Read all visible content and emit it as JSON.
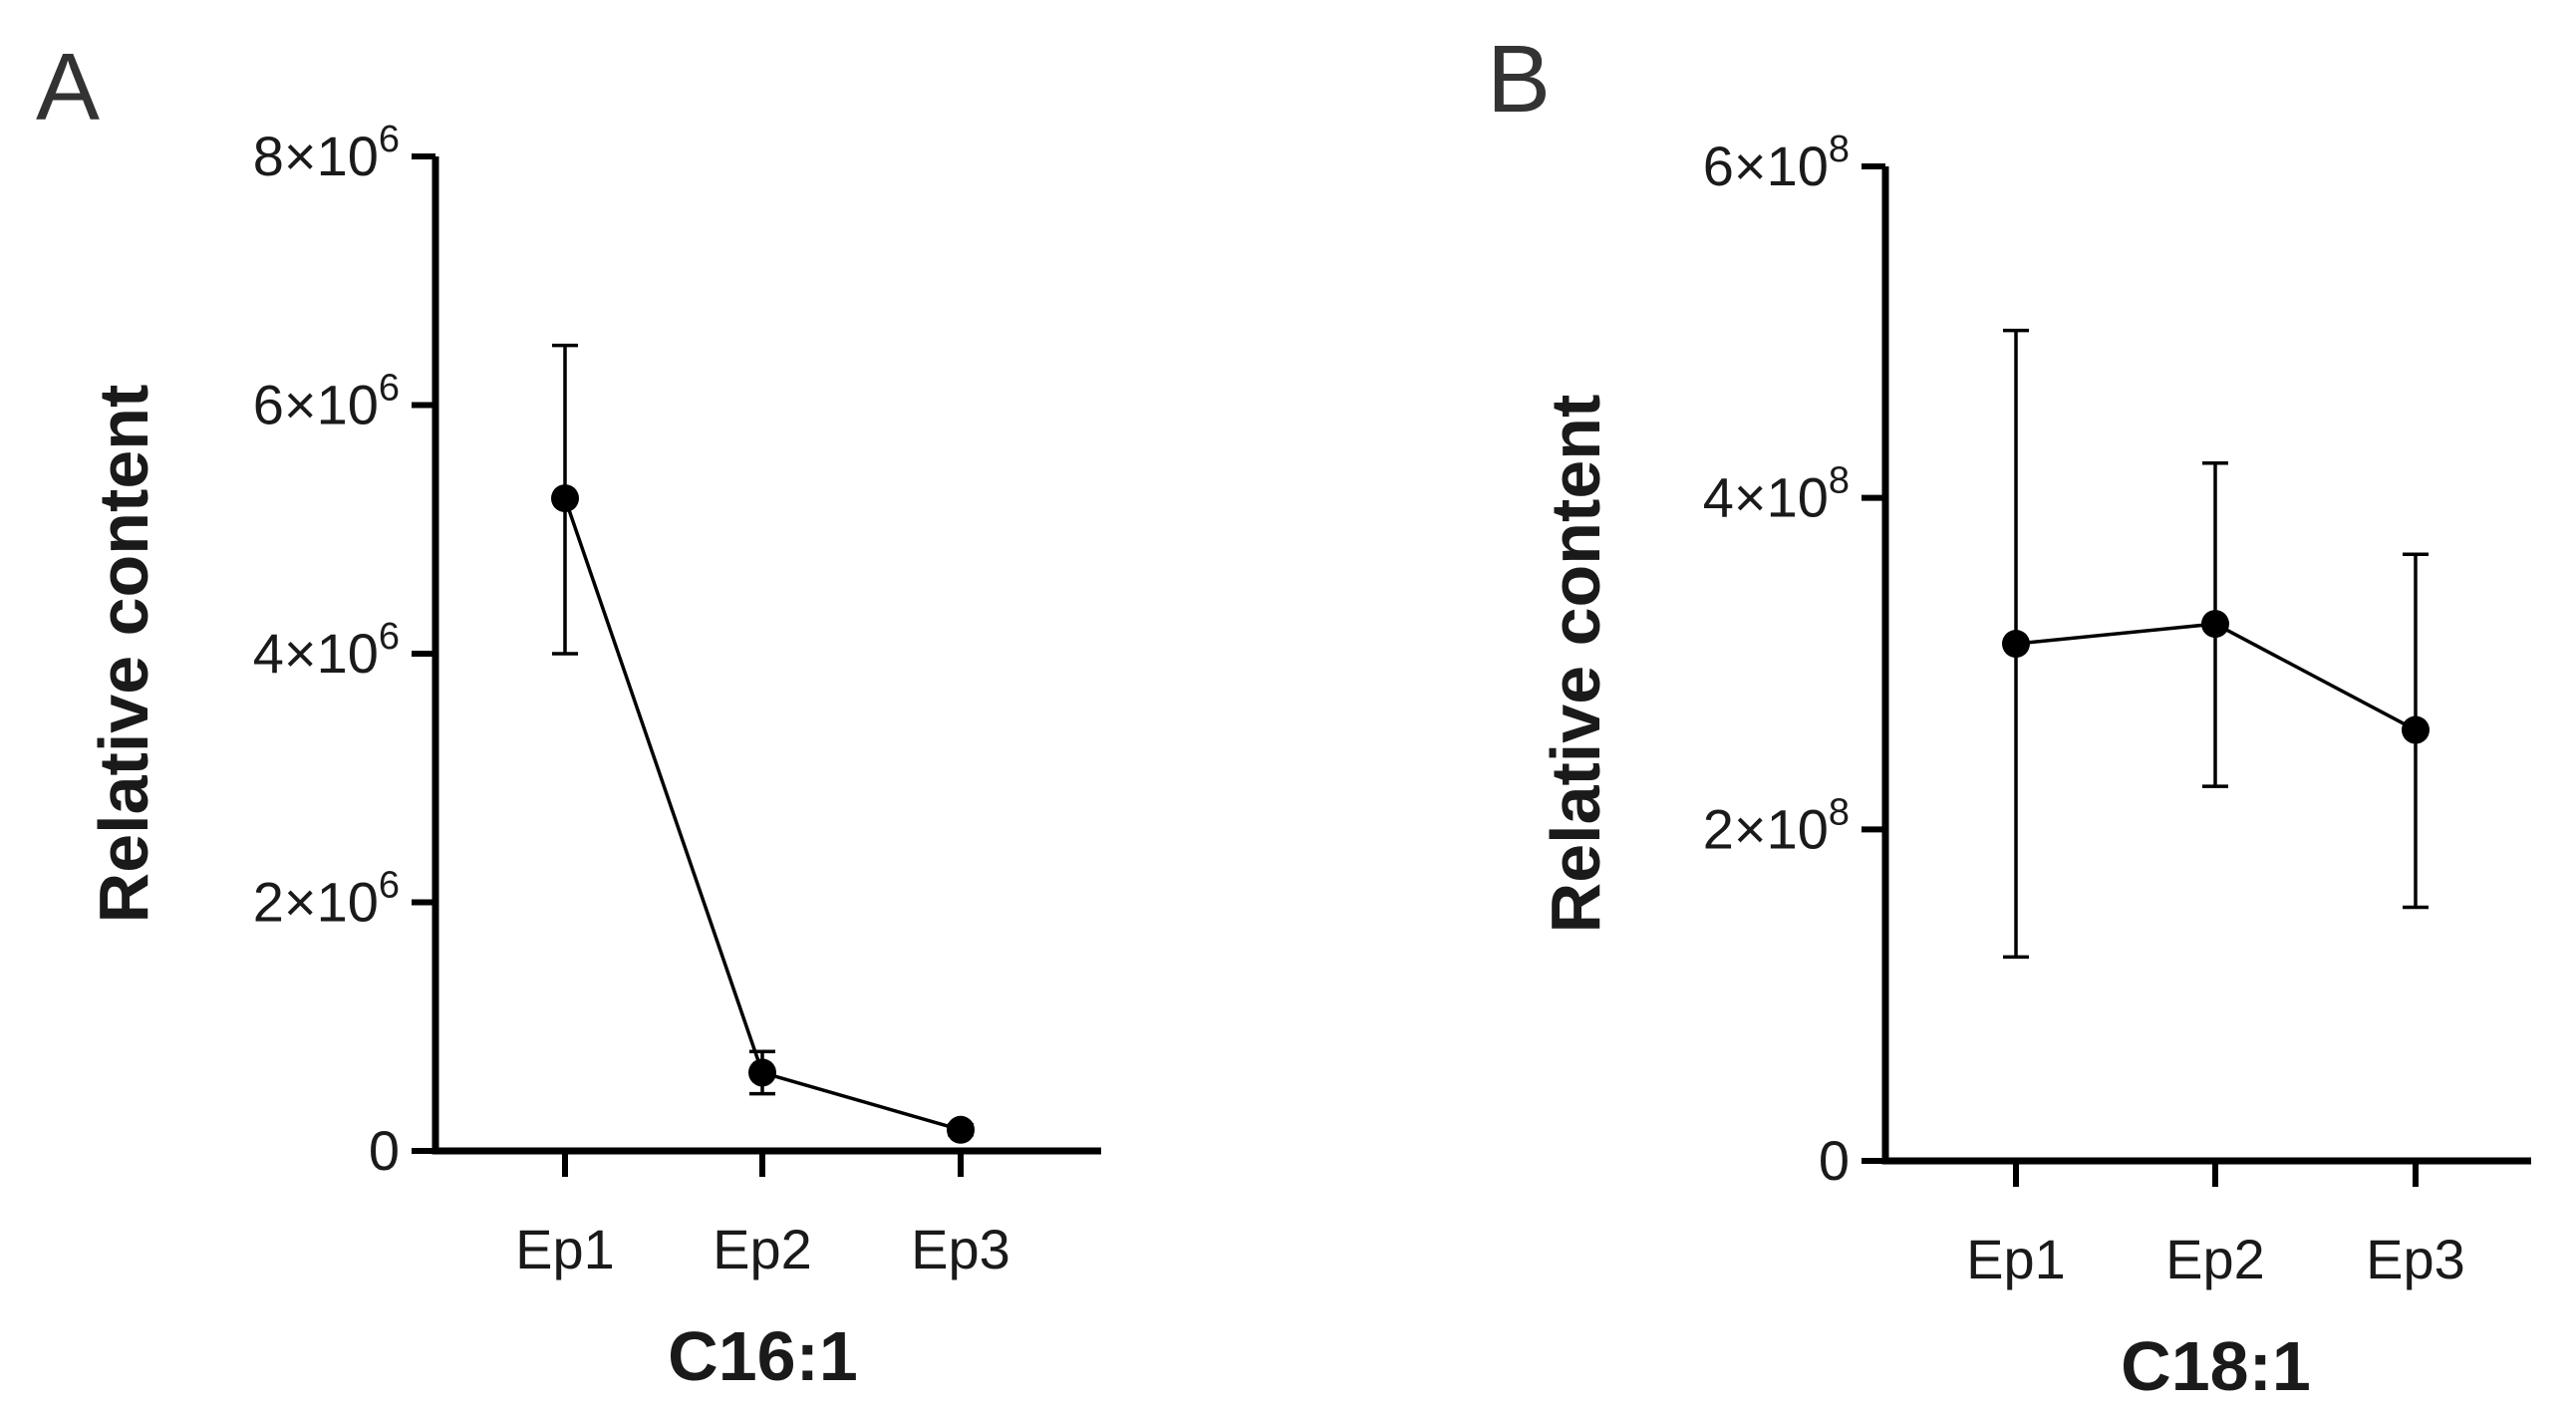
{
  "chart_data": [
    {
      "panel": "A",
      "type": "line",
      "xlabel": "C16:1",
      "ylabel": "Relative content",
      "categories": [
        "Ep1",
        "Ep2",
        "Ep3"
      ],
      "ylim": [
        0,
        8000000
      ],
      "yticks": [
        {
          "value": 0,
          "mantissa": "0",
          "exponent": ""
        },
        {
          "value": 2000000,
          "mantissa": "2×10",
          "exponent": "6"
        },
        {
          "value": 4000000,
          "mantissa": "4×10",
          "exponent": "6"
        },
        {
          "value": 6000000,
          "mantissa": "6×10",
          "exponent": "6"
        },
        {
          "value": 8000000,
          "mantissa": "8×10",
          "exponent": "6"
        }
      ],
      "series": [
        {
          "values": [
            5250000,
            630000,
            170000
          ],
          "error_low": [
            4000000,
            460000,
            130000
          ],
          "error_high": [
            6480000,
            800000,
            210000
          ]
        }
      ]
    },
    {
      "panel": "B",
      "type": "line",
      "xlabel": "C18:1",
      "ylabel": "Relative content",
      "categories": [
        "Ep1",
        "Ep2",
        "Ep3"
      ],
      "ylim": [
        0,
        600000000
      ],
      "yticks": [
        {
          "value": 0,
          "mantissa": "0",
          "exponent": ""
        },
        {
          "value": 200000000,
          "mantissa": "2×10",
          "exponent": "8"
        },
        {
          "value": 400000000,
          "mantissa": "4×10",
          "exponent": "8"
        },
        {
          "value": 600000000,
          "mantissa": "6×10",
          "exponent": "8"
        }
      ],
      "series": [
        {
          "values": [
            312000000,
            324000000,
            260000000
          ],
          "error_low": [
            123000000,
            226000000,
            153000000
          ],
          "error_high": [
            501000000,
            421000000,
            366000000
          ]
        }
      ]
    }
  ]
}
